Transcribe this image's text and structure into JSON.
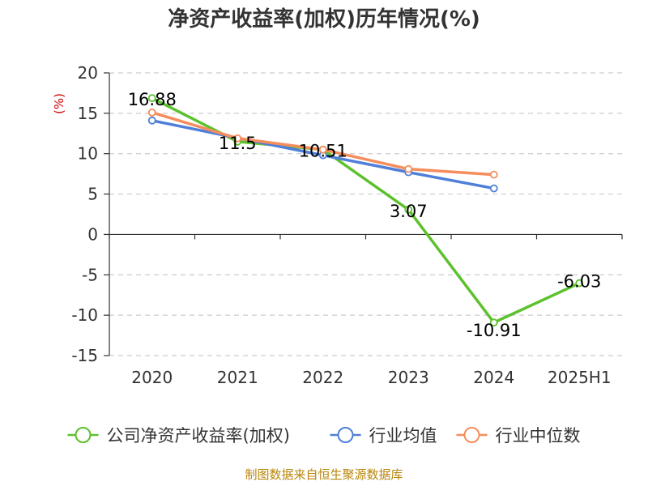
{
  "chart_data": {
    "type": "line",
    "title": "净资产收益率(加权)历年情况(%)",
    "ylabel": "(%)",
    "categories": [
      "2020",
      "2021",
      "2022",
      "2023",
      "2024",
      "2025H1"
    ],
    "ylim": [
      -15,
      20
    ],
    "yticks": [
      20,
      15,
      10,
      5,
      0,
      -5,
      -10,
      -15
    ],
    "grid": true,
    "legend_position": "bottom",
    "series": [
      {
        "name": "公司净资产收益率(加权)",
        "color": "#5cc12c",
        "values": [
          16.88,
          11.5,
          10.51,
          3.07,
          -10.91,
          -6.03
        ],
        "labels": [
          "16.88",
          "11.5",
          "10.51",
          "3.07",
          "-10.91",
          "-6.03"
        ]
      },
      {
        "name": "行业均值",
        "color": "#4f7fd8",
        "values": [
          14.1,
          null,
          9.8,
          7.7,
          5.7,
          null
        ]
      },
      {
        "name": "行业中位数",
        "color": "#f58d5c",
        "values": [
          15.1,
          11.9,
          10.5,
          8.1,
          7.4,
          null
        ]
      }
    ]
  },
  "source": "制图数据来自恒生聚源数据库"
}
